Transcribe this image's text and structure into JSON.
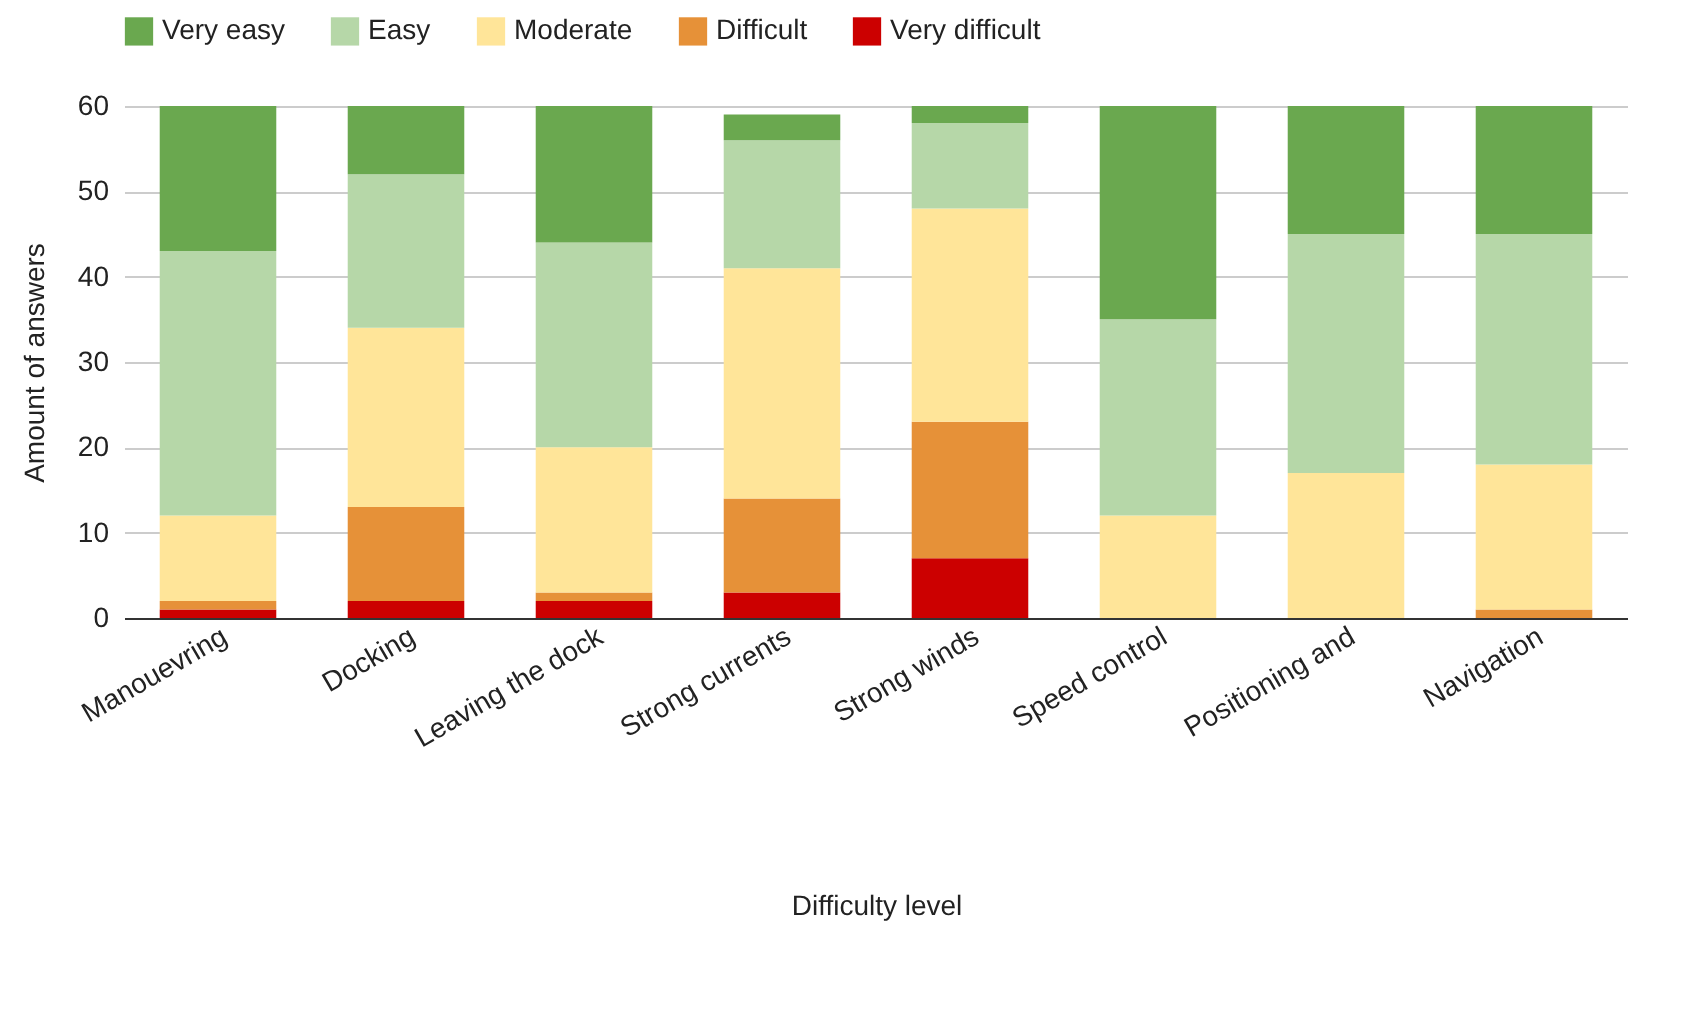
{
  "chart_data": {
    "type": "bar",
    "stacked": true,
    "xlabel": "Difficulty level",
    "ylabel": "Amount of answers",
    "categories": [
      "Manouevring",
      "Docking",
      "Leaving the dock",
      "Strong currents",
      "Strong winds",
      "Speed control",
      "Positioning and",
      "Navigation"
    ],
    "series": [
      {
        "name": "Very difficult",
        "color": "#cc0000",
        "values": [
          1,
          2,
          2,
          3,
          7,
          0,
          0,
          0
        ]
      },
      {
        "name": "Difficult",
        "color": "#e69138",
        "values": [
          1,
          11,
          1,
          11,
          16,
          0,
          0,
          1
        ]
      },
      {
        "name": "Moderate",
        "color": "#ffe599",
        "values": [
          10,
          21,
          17,
          27,
          25,
          12,
          17,
          17
        ]
      },
      {
        "name": "Easy",
        "color": "#b6d7a8",
        "values": [
          31,
          18,
          24,
          15,
          10,
          23,
          28,
          27
        ]
      },
      {
        "name": "Very easy",
        "color": "#6aa84f",
        "values": [
          17,
          8,
          16,
          3,
          2,
          25,
          15,
          15
        ]
      }
    ],
    "ylim": [
      0,
      60
    ],
    "yticks": [
      0,
      10,
      20,
      30,
      40,
      50,
      60
    ],
    "grid": "y",
    "legend": "top"
  }
}
